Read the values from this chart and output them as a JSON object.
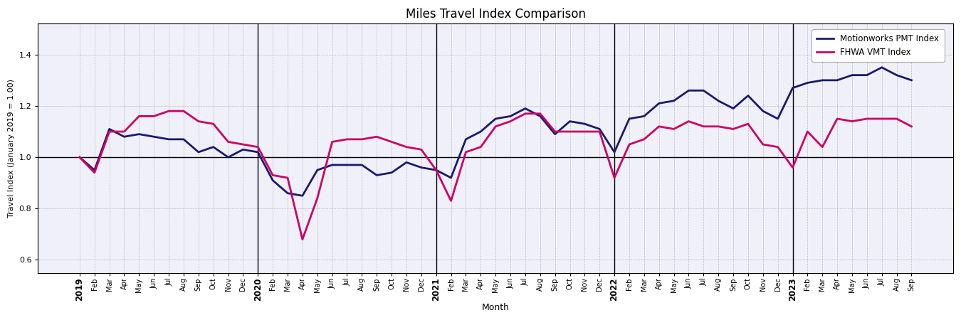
{
  "title": "Miles Travel Index Comparison",
  "xlabel": "Month",
  "ylabel": "Travel Index (January 2019 = 1.00)",
  "legend": [
    "Motionworks PMT Index",
    "FHWA VMT Index"
  ],
  "pmt_color": "#1a1a6e",
  "vmt_color": "#cc0066",
  "ylim": [
    0.55,
    1.52
  ],
  "yticks": [
    0.6,
    0.8,
    1.0,
    1.2,
    1.4
  ],
  "vlines": [
    12,
    24,
    36,
    48
  ],
  "hline": 1.0,
  "months": [
    "2019",
    "Feb",
    "Mar",
    "Apr",
    "May",
    "Jun",
    "Jul",
    "Aug",
    "Sep",
    "Oct",
    "Nov",
    "Dec",
    "2020",
    "Feb",
    "Mar",
    "Apr",
    "May",
    "Jun",
    "Jul",
    "Aug",
    "Sep",
    "Oct",
    "Nov",
    "Dec",
    "2021",
    "Feb",
    "Mar",
    "Apr",
    "May",
    "Jun",
    "Jul",
    "Aug",
    "Sep",
    "Oct",
    "Nov",
    "Dec",
    "2022",
    "Feb",
    "Mar",
    "Apr",
    "May",
    "Jun",
    "Jul",
    "Aug",
    "Sep",
    "Oct",
    "Nov",
    "Dec",
    "2023",
    "Feb",
    "Mar",
    "Apr",
    "May",
    "Jun",
    "Jul",
    "Aug",
    "Sep"
  ],
  "pmt_values": [
    1.0,
    0.95,
    1.11,
    1.08,
    1.09,
    1.08,
    1.07,
    1.07,
    1.02,
    1.04,
    1.0,
    1.03,
    1.02,
    0.91,
    0.86,
    0.85,
    0.95,
    0.97,
    0.97,
    0.97,
    0.93,
    0.94,
    0.98,
    0.96,
    0.95,
    0.92,
    1.07,
    1.1,
    1.15,
    1.16,
    1.19,
    1.16,
    1.09,
    1.14,
    1.13,
    1.11,
    1.02,
    1.15,
    1.16,
    1.21,
    1.22,
    1.26,
    1.26,
    1.22,
    1.19,
    1.24,
    1.18,
    1.15,
    1.27,
    1.29,
    1.3,
    1.3,
    1.32,
    1.32,
    1.35,
    1.32,
    1.3
  ],
  "vmt_values": [
    1.0,
    0.94,
    1.1,
    1.1,
    1.16,
    1.16,
    1.18,
    1.18,
    1.14,
    1.13,
    1.06,
    1.05,
    1.04,
    0.93,
    0.92,
    0.68,
    0.84,
    1.06,
    1.07,
    1.07,
    1.08,
    1.06,
    1.04,
    1.03,
    0.95,
    0.83,
    1.02,
    1.04,
    1.12,
    1.14,
    1.17,
    1.17,
    1.1,
    1.1,
    1.1,
    1.1,
    0.92,
    1.05,
    1.07,
    1.12,
    1.11,
    1.14,
    1.12,
    1.12,
    1.11,
    1.13,
    1.05,
    1.04,
    0.96,
    1.1,
    1.04,
    1.15,
    1.14,
    1.15,
    1.15,
    1.15,
    1.12
  ],
  "year_labels": [
    "2019",
    "2020",
    "2021",
    "2022",
    "2023"
  ],
  "year_positions": [
    0,
    12,
    24,
    36,
    48
  ],
  "background_color": "#f0f0f8",
  "grid_color": "#bbbbcc"
}
